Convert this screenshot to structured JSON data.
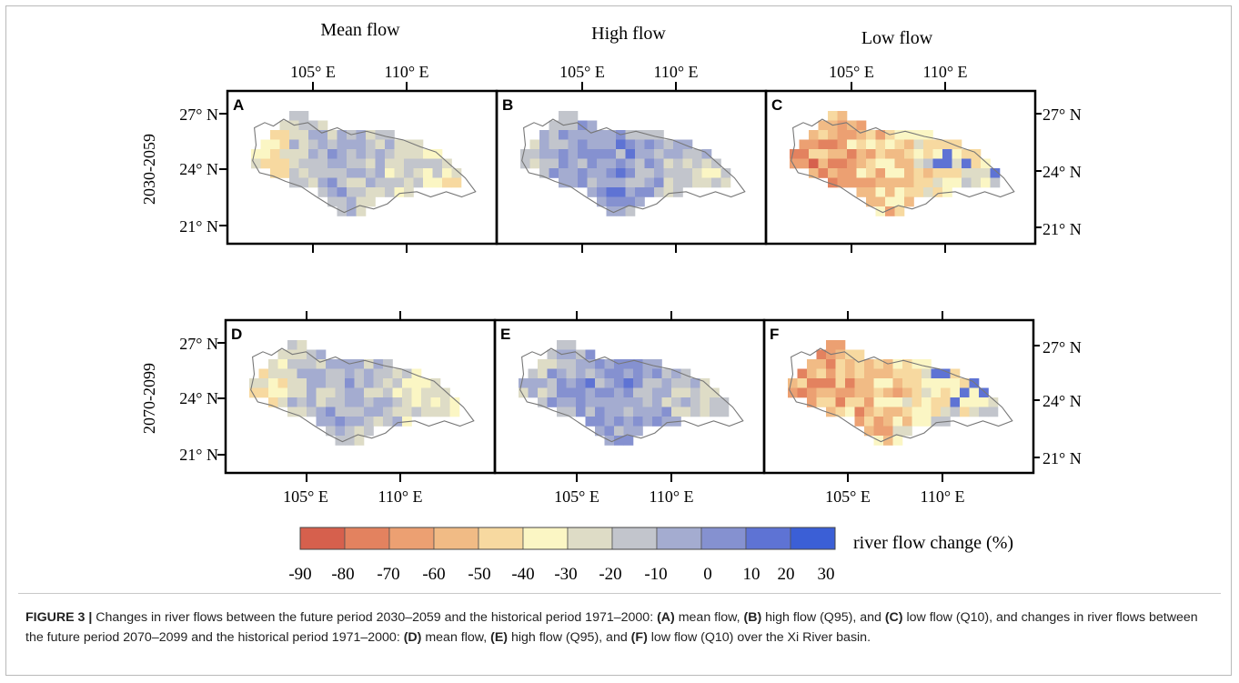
{
  "figure": {
    "column_titles": [
      "Mean flow",
      "High flow",
      "Low flow"
    ],
    "row_labels": [
      "2030-2059",
      "2070-2099"
    ],
    "panel_letters": [
      "A",
      "B",
      "C",
      "D",
      "E",
      "F"
    ],
    "lon_ticks": [
      "105° E",
      "110° E"
    ],
    "lat_ticks": [
      "27° N",
      "24° N",
      "21° N"
    ],
    "legend": {
      "title": "river flow change (%)",
      "labels": [
        "-90",
        "-80",
        "-70",
        "-60",
        "-50",
        "-40",
        "-30",
        "-20",
        "-10",
        "0",
        "10",
        "20",
        "30"
      ],
      "colors": [
        "#d6604d",
        "#e3825f",
        "#eca072",
        "#f1bb85",
        "#f7d9a0",
        "#fbf6c4",
        "#dedcc6",
        "#c2c5cc",
        "#a4acd0",
        "#8591d0",
        "#5e73d4",
        "#3b5fd6"
      ]
    }
  },
  "caption": {
    "label": "FIGURE 3 |",
    "p1": " Changes in river flows between the future period 2030–2059 and the historical period 1971–2000: ",
    "a": "(A)",
    "p2": " mean flow, ",
    "b": "(B)",
    "p3": " high flow (Q95), and ",
    "c": "(C)",
    "p4": " low flow (Q10), and changes in river flows between the future period 2070–2099 and the historical period 1971–2000: ",
    "d": "(D)",
    "p5": " mean flow, ",
    "e": "(E)",
    "p6": " high flow (Q95), and ",
    "f": "(F)",
    "p7": " low flow (Q10) over the Xi River basin."
  }
}
